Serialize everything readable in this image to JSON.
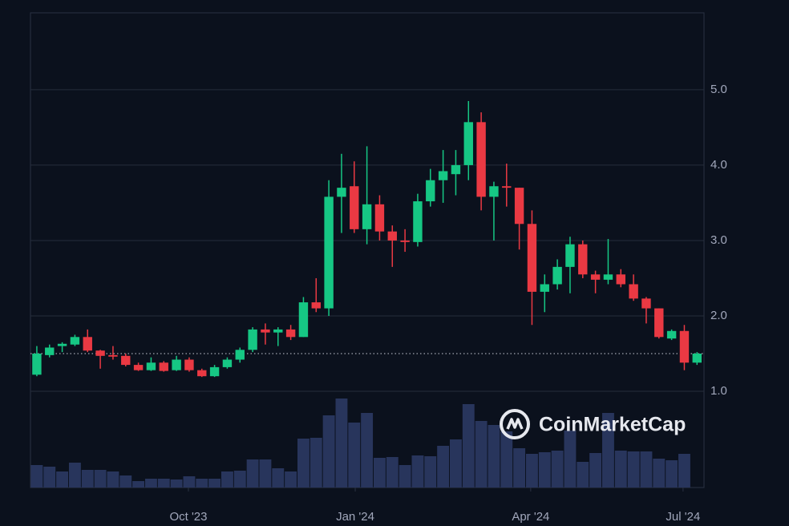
{
  "chart_data": {
    "type": "candlestick",
    "watermark": "CoinMarketCap",
    "categories": [
      null,
      null,
      null,
      null,
      null,
      null,
      null,
      null,
      null,
      null,
      null,
      null,
      null,
      null,
      null,
      null,
      null,
      null,
      null,
      null,
      null,
      null,
      null,
      null,
      null,
      null,
      null,
      null,
      null,
      null,
      null,
      null,
      null,
      null,
      null,
      null,
      null,
      null,
      null,
      null,
      null,
      null,
      null,
      null,
      null,
      null,
      null,
      null,
      null,
      null,
      null,
      null,
      null
    ],
    "open": [
      1.22,
      1.48,
      1.6,
      1.62,
      1.72,
      1.54,
      1.48,
      1.47,
      1.35,
      1.28,
      1.38,
      1.28,
      1.42,
      1.28,
      1.2,
      1.32,
      1.42,
      1.55,
      1.82,
      1.78,
      1.82,
      1.72,
      2.18,
      2.1,
      3.58,
      3.72,
      3.15,
      3.48,
      3.12,
      3.0,
      2.98,
      3.52,
      3.8,
      3.88,
      4.0,
      4.57,
      3.58,
      3.72,
      3.7,
      3.22,
      2.32,
      2.42,
      2.65,
      2.95,
      2.55,
      2.48,
      2.55,
      2.42,
      2.23,
      2.1,
      1.7,
      1.8,
      1.38
    ],
    "high": [
      1.6,
      1.62,
      1.65,
      1.75,
      1.82,
      1.55,
      1.6,
      1.5,
      1.38,
      1.45,
      1.4,
      1.47,
      1.45,
      1.3,
      1.35,
      1.45,
      1.58,
      1.85,
      1.9,
      1.85,
      1.88,
      2.25,
      2.5,
      3.8,
      4.15,
      4.05,
      4.25,
      3.6,
      3.2,
      3.15,
      3.62,
      3.95,
      4.2,
      4.2,
      4.85,
      4.7,
      3.78,
      4.02,
      3.7,
      3.4,
      2.55,
      2.75,
      3.05,
      3.0,
      2.6,
      3.02,
      2.62,
      2.55,
      2.25,
      2.1,
      1.82,
      1.88,
      1.52
    ],
    "low": [
      1.2,
      1.45,
      1.52,
      1.6,
      1.52,
      1.3,
      1.42,
      1.33,
      1.27,
      1.27,
      1.26,
      1.27,
      1.26,
      1.19,
      1.19,
      1.3,
      1.38,
      1.52,
      1.62,
      1.6,
      1.68,
      1.72,
      2.05,
      2.0,
      3.1,
      3.1,
      2.95,
      3.0,
      2.65,
      2.85,
      2.92,
      3.45,
      3.5,
      3.6,
      3.8,
      3.4,
      3.0,
      3.45,
      2.88,
      1.88,
      2.05,
      2.35,
      2.3,
      2.5,
      2.3,
      2.42,
      2.38,
      2.2,
      1.9,
      1.7,
      1.68,
      1.28,
      1.35
    ],
    "close": [
      1.5,
      1.58,
      1.63,
      1.72,
      1.54,
      1.47,
      1.46,
      1.35,
      1.28,
      1.38,
      1.27,
      1.42,
      1.28,
      1.2,
      1.32,
      1.42,
      1.55,
      1.82,
      1.78,
      1.82,
      1.72,
      2.18,
      2.1,
      3.58,
      3.7,
      3.15,
      3.48,
      3.12,
      3.0,
      2.98,
      3.52,
      3.8,
      3.92,
      4.0,
      4.57,
      3.58,
      3.72,
      3.7,
      3.22,
      2.32,
      2.42,
      2.65,
      2.95,
      2.55,
      2.48,
      2.55,
      2.42,
      2.23,
      2.1,
      1.72,
      1.8,
      1.38,
      1.5
    ],
    "volume": [
      28,
      26,
      20,
      31,
      22,
      22,
      20,
      15,
      8,
      11,
      11,
      10,
      14,
      11,
      11,
      20,
      21,
      35,
      35,
      24,
      20,
      61,
      62,
      90,
      111,
      81,
      93,
      37,
      38,
      28,
      40,
      39,
      52,
      60,
      104,
      83,
      78,
      70,
      49,
      42,
      44,
      46,
      71,
      32,
      43,
      93,
      46,
      45,
      45,
      36,
      34,
      42,
      null
    ],
    "up_color": "#16c784",
    "down_color": "#ea3943",
    "volume_color": "#28355c",
    "last_price": 1.5,
    "ylim": [
      1.0,
      6.02
    ],
    "yticks": [
      {
        "value": 1,
        "label": "1.0"
      },
      {
        "value": 2,
        "label": "2.0"
      },
      {
        "value": 3,
        "label": "3.0"
      },
      {
        "value": 4,
        "label": "4.0"
      },
      {
        "value": 5,
        "label": "5.0"
      }
    ],
    "volume_lim": [
      0,
      130
    ],
    "xlim": [
      -0.5,
      52.55
    ],
    "xticks": [
      {
        "value": 11.94,
        "label": "Oct '23"
      },
      {
        "value": 25.08,
        "label": "Jan '24"
      },
      {
        "value": 38.9,
        "label": "Apr '24"
      },
      {
        "value": 50.9,
        "label": "Jul '24"
      }
    ],
    "grid": true
  }
}
